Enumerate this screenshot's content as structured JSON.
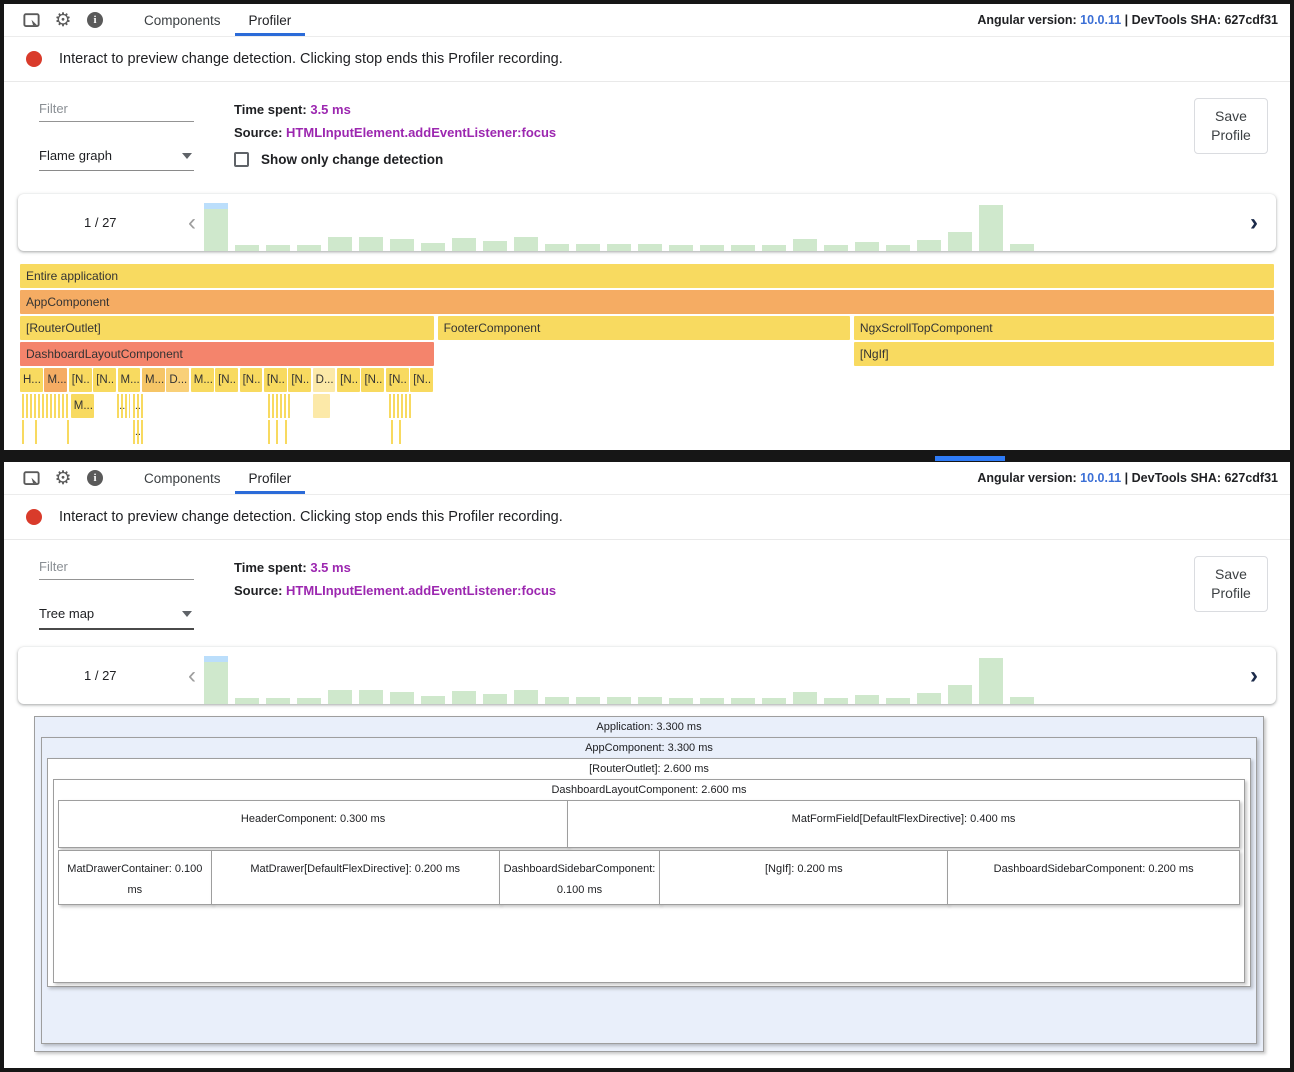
{
  "app": {
    "header": {
      "tabs": [
        "Components",
        "Profiler"
      ],
      "active_tab": "Profiler",
      "version_label": "Angular version:",
      "version_value": "10.0.11",
      "sha_text": "| DevTools SHA: 627cdf31",
      "icons": [
        "inspect-icon",
        "settings-gear-icon",
        "info-icon"
      ]
    },
    "recording_message": "Interact to preview change detection. Clicking stop ends this Profiler recording.",
    "controls": {
      "filter_placeholder": "Filter",
      "time_spent_label": "Time spent:",
      "time_spent_value": "3.5 ms",
      "source_label": "Source:",
      "source_value": "HTMLInputElement.addEventListener:focus",
      "show_only_cd_label": "Show only change detection",
      "show_only_cd_checked": false,
      "save_profile_label": "Save Profile"
    },
    "frame_selector": {
      "position": "1 / 27",
      "prev": "‹",
      "next": "›",
      "bars": [
        {
          "h": 88,
          "sel": true
        },
        {
          "h": 12
        },
        {
          "h": 12
        },
        {
          "h": 12
        },
        {
          "h": 30
        },
        {
          "h": 30
        },
        {
          "h": 25
        },
        {
          "h": 17
        },
        {
          "h": 27
        },
        {
          "h": 21
        },
        {
          "h": 30
        },
        {
          "h": 15
        },
        {
          "h": 15
        },
        {
          "h": 15
        },
        {
          "h": 15
        },
        {
          "h": 12
        },
        {
          "h": 12
        },
        {
          "h": 12
        },
        {
          "h": 12
        },
        {
          "h": 25
        },
        {
          "h": 12
        },
        {
          "h": 18
        },
        {
          "h": 12
        },
        {
          "h": 22
        },
        {
          "h": 40
        },
        {
          "h": 95
        },
        {
          "h": 14
        }
      ]
    }
  },
  "top_view": {
    "mode": "Flame graph"
  },
  "bottom_view": {
    "mode": "Tree map"
  },
  "flame": {
    "rows": [
      [
        "Entire application"
      ],
      [
        "AppComponent"
      ],
      [
        "[RouterOutlet]",
        "FooterComponent",
        "NgxScrollTopComponent"
      ],
      [
        "DashboardLayoutComponent",
        "[NgIf]"
      ],
      [
        "H...",
        "M...",
        "[N..",
        "[N..",
        "M...",
        "M...",
        "D...",
        "M...",
        "[N..",
        "[N..",
        "[N..",
        "[N..",
        "D...",
        "[N..",
        "[N..",
        "[N..",
        "[N.."
      ],
      [
        "M...",
        "..",
        ".."
      ],
      [
        ".."
      ]
    ]
  },
  "treemap": {
    "application": "Application: 3.300 ms",
    "app_component": "AppComponent: 3.300 ms",
    "router_outlet": "[RouterOutlet]: 2.600 ms",
    "dashboard_layout": "DashboardLayoutComponent: 2.600 ms",
    "row_a": [
      "HeaderComponent: 0.300 ms",
      "MatFormField[DefaultFlexDirective]: 0.400 ms"
    ],
    "row_b": [
      "MatDrawerContainer: 0.100 ms",
      "MatDrawer[DefaultFlexDirective]: 0.200 ms",
      "DashboardSidebarComponent: 0.100 ms",
      "[NgIf]: 0.200 ms",
      "DashboardSidebarComponent: 0.200 ms"
    ]
  },
  "colors": {
    "accent_blue": "#2b6bd8",
    "version_blue": "#3b6fd6",
    "purple_value": "#9c27b0",
    "record_red": "#d93b2b",
    "flame_yellow": "#f8da60",
    "flame_orange": "#f5ac63",
    "flame_salmon": "#f4846c",
    "flame_pale": "#fce9a8",
    "bar_green": "#cfe8cc",
    "bar_selected_bg": "#bbdefb",
    "treemap_bg": "#e9effa"
  }
}
